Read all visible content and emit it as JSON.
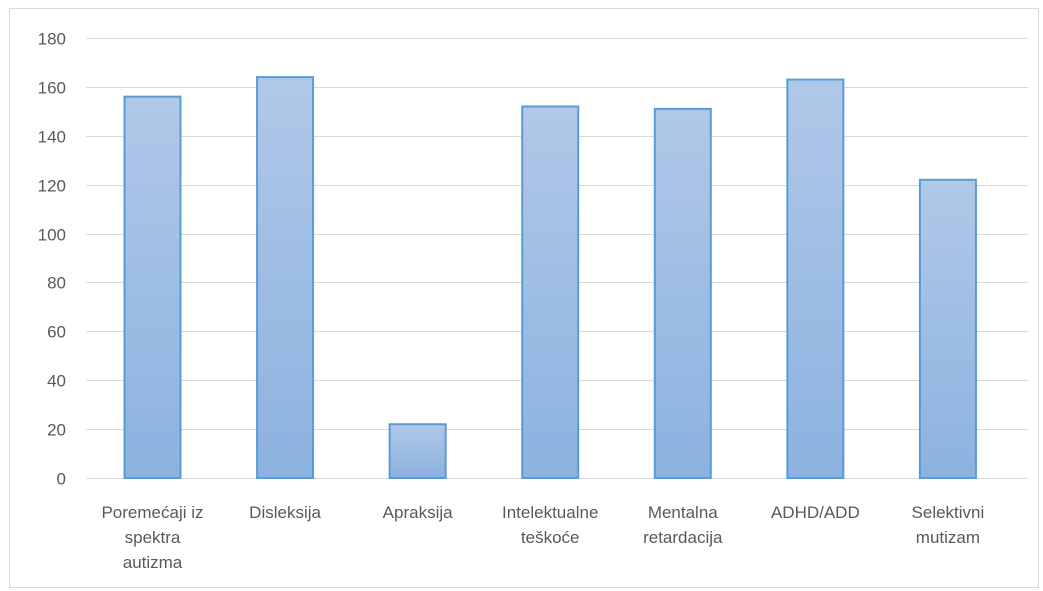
{
  "chart_data": {
    "type": "bar",
    "categories": [
      [
        "Poremećaji iz",
        "spektra",
        "autizma"
      ],
      [
        "Disleksija"
      ],
      [
        "Apraksija"
      ],
      [
        "Intelektualne",
        "teškoće"
      ],
      [
        "Mentalna",
        "retardacija"
      ],
      [
        "ADHD/ADD"
      ],
      [
        "Selektivni",
        "mutizam"
      ]
    ],
    "values": [
      156,
      164,
      22,
      152,
      151,
      163,
      122
    ],
    "ylim": [
      0,
      180
    ],
    "yticks": [
      0,
      20,
      40,
      60,
      80,
      100,
      120,
      140,
      160,
      180
    ],
    "grid": true,
    "legend": "none",
    "colors": {
      "bar_top": "#b0c8e8",
      "bar_bottom": "#8cb2e0",
      "bar_border": "#5b9bd5",
      "gridline": "#d9d9d9",
      "text": "#595959"
    }
  }
}
